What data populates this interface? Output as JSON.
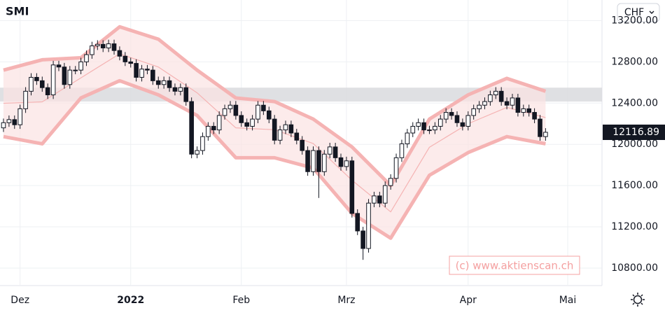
{
  "chart_data": {
    "type": "candlestick",
    "title": "SMI",
    "currency": "CHF",
    "watermark": "(c) www.aktienscan.ch",
    "open": [
      12160,
      12210,
      12240,
      12190,
      12345,
      12515,
      12650,
      12617,
      12550,
      12480,
      12770,
      12750,
      12580,
      12720,
      12720,
      12800,
      12870,
      12955,
      12970,
      12935,
      12975,
      12910,
      12855,
      12800,
      12785,
      12650,
      12730,
      12720,
      12617,
      12580,
      12617,
      12550,
      12515,
      12550,
      12415,
      11905,
      11940,
      12075,
      12175,
      12140,
      12280,
      12345,
      12380,
      12280,
      12210,
      12175,
      12245,
      12380,
      12325,
      12245,
      12040,
      12140,
      12190,
      12110,
      12040,
      11940,
      11735,
      11940,
      11735,
      11905,
      11975,
      11870,
      11785,
      11840,
      11330,
      11160,
      10990,
      11430,
      11500,
      11430,
      11600,
      11670,
      11870,
      12005,
      12110,
      12175,
      12210,
      12140,
      12140,
      12175,
      12245,
      12310,
      12280,
      12210,
      12175,
      12280,
      12345,
      12380,
      12415,
      12480,
      12515,
      12415,
      12380,
      12450,
      12310,
      12345,
      12310,
      12245,
      12075
    ],
    "high": [
      12250,
      12280,
      12280,
      12385,
      12555,
      12690,
      12690,
      12657,
      12590,
      12810,
      12810,
      12790,
      12760,
      12760,
      12840,
      12910,
      12995,
      13010,
      13010,
      13015,
      13015,
      12950,
      12895,
      12840,
      12825,
      12770,
      12770,
      12760,
      12657,
      12657,
      12657,
      12590,
      12590,
      12590,
      12455,
      11980,
      12115,
      12215,
      12215,
      12320,
      12385,
      12420,
      12420,
      12320,
      12250,
      12285,
      12420,
      12420,
      12365,
      12285,
      12180,
      12230,
      12230,
      12150,
      12080,
      11980,
      11980,
      11980,
      11945,
      12015,
      12015,
      11910,
      11880,
      11880,
      11370,
      11200,
      11470,
      11540,
      11540,
      11640,
      11710,
      11910,
      12045,
      12150,
      12215,
      12250,
      12250,
      12180,
      12215,
      12285,
      12350,
      12350,
      12320,
      12250,
      12320,
      12385,
      12420,
      12455,
      12520,
      12555,
      12555,
      12455,
      12490,
      12490,
      12385,
      12385,
      12350,
      12285,
      12157
    ],
    "low": [
      12120,
      12170,
      12150,
      12150,
      12305,
      12475,
      12577,
      12510,
      12440,
      12440,
      12710,
      12540,
      12540,
      12680,
      12680,
      12760,
      12830,
      12915,
      12895,
      12895,
      12870,
      12815,
      12760,
      12745,
      12610,
      12610,
      12680,
      12577,
      12540,
      12540,
      12510,
      12475,
      12475,
      12375,
      11865,
      11865,
      11900,
      12035,
      12100,
      12100,
      12240,
      12305,
      12240,
      12170,
      12135,
      12135,
      12205,
      12285,
      12205,
      12000,
      12000,
      12100,
      12070,
      12000,
      11900,
      11695,
      11695,
      11480,
      11695,
      11865,
      11830,
      11745,
      11745,
      11290,
      11120,
      10880,
      10950,
      11390,
      11390,
      11390,
      11560,
      11630,
      11830,
      11965,
      12070,
      12135,
      12100,
      12100,
      12100,
      12135,
      12205,
      12240,
      12170,
      12135,
      12135,
      12240,
      12305,
      12340,
      12375,
      12440,
      12375,
      12340,
      12340,
      12270,
      12270,
      12270,
      12205,
      12035,
      12035
    ],
    "close": [
      12210,
      12240,
      12190,
      12345,
      12515,
      12650,
      12617,
      12550,
      12480,
      12770,
      12750,
      12580,
      12720,
      12720,
      12800,
      12870,
      12955,
      12970,
      12935,
      12975,
      12910,
      12855,
      12800,
      12785,
      12650,
      12730,
      12720,
      12617,
      12580,
      12617,
      12550,
      12515,
      12550,
      12415,
      11905,
      11940,
      12075,
      12175,
      12140,
      12280,
      12345,
      12380,
      12280,
      12210,
      12175,
      12245,
      12380,
      12325,
      12245,
      12040,
      12140,
      12190,
      12110,
      12040,
      11940,
      11735,
      11940,
      11735,
      11905,
      11975,
      11870,
      11785,
      11840,
      11330,
      11160,
      10990,
      11430,
      11500,
      11430,
      11600,
      11670,
      11870,
      12005,
      12110,
      12175,
      12210,
      12140,
      12140,
      12175,
      12245,
      12310,
      12280,
      12210,
      12175,
      12280,
      12345,
      12380,
      12415,
      12480,
      12515,
      12415,
      12380,
      12450,
      12310,
      12345,
      12310,
      12245,
      12075,
      12117
    ],
    "bands": {
      "x": [
        0,
        7,
        14,
        21,
        28,
        35,
        42,
        49,
        56,
        63,
        70,
        77,
        84,
        91,
        98
      ],
      "upper": [
        12720,
        12820,
        12840,
        13140,
        13020,
        12720,
        12450,
        12415,
        12245,
        11975,
        11600,
        12245,
        12480,
        12640,
        12515
      ],
      "middle": [
        12398,
        12412,
        12645,
        12878,
        12750,
        12500,
        12160,
        12142,
        12008,
        11652,
        11345,
        11972,
        12200,
        12358,
        12260
      ],
      "lower": [
        12075,
        12005,
        12450,
        12617,
        12480,
        12280,
        11870,
        11870,
        11770,
        11330,
        11090,
        11700,
        11920,
        12075,
        12005
      ]
    },
    "zone": [
      12415,
      12550
    ],
    "last_price": 12116.89,
    "xlim": [
      -0.63,
      108.2
    ],
    "xticks": [
      {
        "value": 3,
        "label": "Dez"
      },
      {
        "value": 23,
        "label": "2022"
      },
      {
        "value": 43,
        "label": "Feb"
      },
      {
        "value": 62,
        "label": "Mrz"
      },
      {
        "value": 84,
        "label": "Apr"
      },
      {
        "value": 102,
        "label": "Mai"
      }
    ],
    "ylim": [
      10630,
      13400
    ],
    "yticks": [
      {
        "value": 10800,
        "label": "10800.00"
      },
      {
        "value": 11200,
        "label": "11200.00"
      },
      {
        "value": 11600,
        "label": "11600.00"
      },
      {
        "value": 12000,
        "label": "12000.00"
      },
      {
        "value": 12400,
        "label": "12400.00"
      },
      {
        "value": 12800,
        "label": "12800.00"
      },
      {
        "value": 13200,
        "label": "13200.00"
      }
    ],
    "grid": true
  }
}
